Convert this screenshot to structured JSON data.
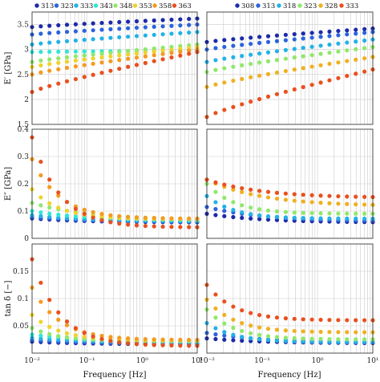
{
  "chart_data": {
    "type": "scatter",
    "layout": "3x2 grid of scatter panels",
    "x_scale": "log",
    "xlim": [
      0.01,
      10
    ],
    "x_ticks": [
      0.01,
      0.1,
      1,
      10
    ],
    "x_tick_labels": [
      "10⁻²",
      "10⁻¹",
      "10⁰",
      "10¹"
    ],
    "x": [
      0.01,
      0.0144,
      0.0207,
      0.03,
      0.0431,
      0.062,
      0.0893,
      0.1285,
      0.185,
      0.2666,
      0.3837,
      0.5525,
      0.7955,
      1.145,
      1.648,
      2.373,
      3.416,
      4.918,
      7.08,
      10
    ],
    "xlabel": "Frequency [Hz]",
    "rows": [
      {
        "ylabel": "E′ [GPa]",
        "ylim": [
          1.5,
          3.75
        ],
        "y_ticks": [
          1.5,
          2,
          2.5,
          3,
          3.5
        ],
        "y_tick_labels": [
          "1.5",
          "2",
          "2.5",
          "3",
          "3.5"
        ]
      },
      {
        "ylabel": "E″ [GPa]",
        "ylim": [
          0,
          0.4
        ],
        "y_ticks": [
          0,
          0.1,
          0.2,
          0.3,
          0.4
        ],
        "y_tick_labels": [
          "0",
          "0.1",
          "0.2",
          "0.3",
          "0.4"
        ]
      },
      {
        "ylabel": "tan δ [−]",
        "ylim": [
          0,
          0.2
        ],
        "y_ticks": [
          0.05,
          0.1,
          0.15
        ],
        "y_tick_labels": [
          "0.05",
          "0.1",
          "0.15"
        ]
      }
    ],
    "columns": [
      {
        "legend": [
          "313",
          "323",
          "333",
          "343",
          "348",
          "353",
          "358",
          "363"
        ],
        "colors": [
          "#1c2aa8",
          "#2c63dd",
          "#22b2e8",
          "#2ee6d5",
          "#8fe86a",
          "#f0d22b",
          "#f59a1f",
          "#e9501e"
        ],
        "series": [
          {
            "name": "313",
            "E_storage": {
              "start": 3.45,
              "end": 3.62
            },
            "E_loss": {
              "start": 0.073,
              "end": 0.058
            },
            "tan_delta": {
              "start": 0.021,
              "end": 0.016
            }
          },
          {
            "name": "323",
            "E_storage": {
              "start": 3.3,
              "end": 3.5
            },
            "E_loss": {
              "start": 0.078,
              "end": 0.06
            },
            "tan_delta": {
              "start": 0.024,
              "end": 0.017
            }
          },
          {
            "name": "333",
            "E_storage": {
              "start": 3.1,
              "end": 3.35
            },
            "E_loss": {
              "start": 0.085,
              "end": 0.062
            },
            "tan_delta": {
              "start": 0.028,
              "end": 0.019
            }
          },
          {
            "name": "343",
            "E_storage": {
              "start": 2.95,
              "end": 2.98
            },
            "E_loss": {
              "start": 0.1,
              "end": 0.065
            },
            "tan_delta": {
              "start": 0.034,
              "end": 0.021
            }
          },
          {
            "name": "348",
            "E_storage": {
              "start": 2.75,
              "end": 3.1
            },
            "E_loss": {
              "start": 0.13,
              "end": 0.068
            },
            "tan_delta": {
              "start": 0.046,
              "end": 0.022
            }
          },
          {
            "name": "353",
            "E_storage": {
              "start": 2.65,
              "end": 3.05
            },
            "E_loss": {
              "start": 0.18,
              "end": 0.07
            },
            "tan_delta": {
              "start": 0.07,
              "end": 0.023
            }
          },
          {
            "name": "358",
            "E_storage": {
              "start": 2.5,
              "end": 3.0
            },
            "E_loss": {
              "start": 0.29,
              "end": 0.072
            },
            "tan_delta": {
              "start": 0.12,
              "end": 0.024
            }
          },
          {
            "name": "363",
            "E_storage": {
              "start": 2.15,
              "end": 2.95
            },
            "E_loss": {
              "start": 0.37,
              "end": 0.04
            },
            "tan_delta": {
              "start": 0.172,
              "end": 0.013
            }
          }
        ]
      },
      {
        "legend": [
          "308",
          "313",
          "318",
          "323",
          "328",
          "333"
        ],
        "colors": [
          "#1c2aa8",
          "#2c63dd",
          "#22b2e8",
          "#8fe86a",
          "#f0b020",
          "#e9501e"
        ],
        "series": [
          {
            "name": "308",
            "E_storage": {
              "start": 3.15,
              "end": 3.42
            },
            "E_loss": {
              "start": 0.09,
              "end": 0.058
            },
            "tan_delta": {
              "start": 0.027,
              "end": 0.018
            }
          },
          {
            "name": "313",
            "E_storage": {
              "start": 3.0,
              "end": 3.35
            },
            "E_loss": {
              "start": 0.115,
              "end": 0.062
            },
            "tan_delta": {
              "start": 0.037,
              "end": 0.019
            }
          },
          {
            "name": "318",
            "E_storage": {
              "start": 2.75,
              "end": 3.2
            },
            "E_loss": {
              "start": 0.155,
              "end": 0.072
            },
            "tan_delta": {
              "start": 0.055,
              "end": 0.02
            }
          },
          {
            "name": "323",
            "E_storage": {
              "start": 2.55,
              "end": 3.05
            },
            "E_loss": {
              "start": 0.2,
              "end": 0.09
            },
            "tan_delta": {
              "start": 0.08,
              "end": 0.025
            }
          },
          {
            "name": "328",
            "E_storage": {
              "start": 2.25,
              "end": 2.85
            },
            "E_loss": {
              "start": 0.215,
              "end": 0.118
            },
            "tan_delta": {
              "start": 0.098,
              "end": 0.038
            }
          },
          {
            "name": "333",
            "E_storage": {
              "start": 1.65,
              "end": 2.6
            },
            "E_loss": {
              "start": 0.215,
              "end": 0.148
            },
            "tan_delta": {
              "start": 0.125,
              "end": 0.06
            }
          }
        ]
      }
    ]
  }
}
